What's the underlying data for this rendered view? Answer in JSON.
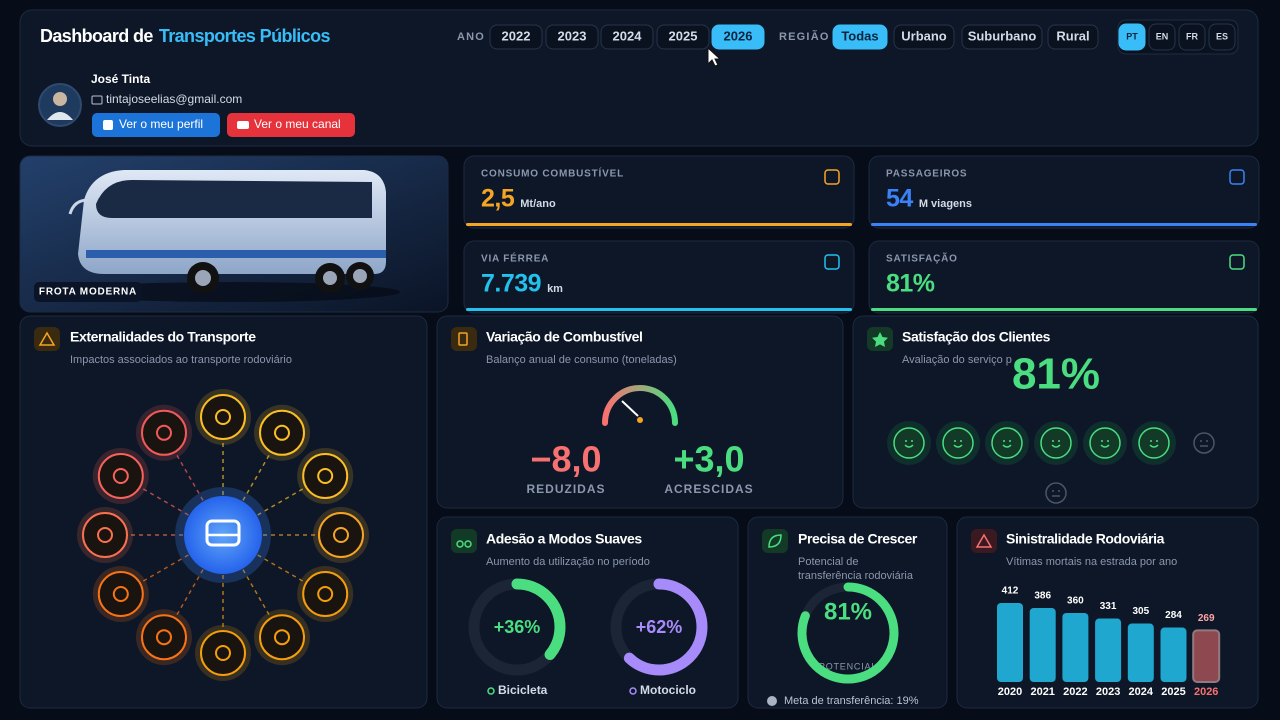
{
  "header": {
    "title_lead": "Dashboard de",
    "title_accent": "Transportes Públicos",
    "year_label": "ANO",
    "years": [
      {
        "label": "2022",
        "active": false
      },
      {
        "label": "2023",
        "active": false
      },
      {
        "label": "2024",
        "active": false
      },
      {
        "label": "2025",
        "active": false
      },
      {
        "label": "2026",
        "active": true
      }
    ],
    "region_label": "REGIÃO",
    "regions": [
      {
        "label": "Todas",
        "active": true
      },
      {
        "label": "Urbano",
        "active": false
      },
      {
        "label": "Suburbano",
        "active": false
      },
      {
        "label": "Rural",
        "active": false
      }
    ],
    "languages": [
      {
        "label": "PT",
        "active": true
      },
      {
        "label": "EN",
        "active": false
      },
      {
        "label": "FR",
        "active": false
      },
      {
        "label": "ES",
        "active": false
      }
    ]
  },
  "profile": {
    "name": "José Tinta",
    "email": "tintajoseelias@gmail.com",
    "profile_button": "Ver o meu perfil",
    "channel_button": "Ver o meu canal"
  },
  "hero": {
    "badge": "FROTA MODERNA"
  },
  "kpis": [
    {
      "label": "CONSUMO COMBUSTÍVEL",
      "value": "2,5",
      "unit": "Mt/ano",
      "color": "#f5a524"
    },
    {
      "label": "PASSAGEIROS",
      "value": "54",
      "unit": "M viagens",
      "color": "#3b82f6"
    },
    {
      "label": "VIA FÉRREA",
      "value": "7.739",
      "unit": "km",
      "color": "#22c1ee"
    },
    {
      "label": "SATISFAÇÃO",
      "value": "81%",
      "unit": "",
      "color": "#4ade80"
    }
  ],
  "externalities": {
    "title": "Externalidades do Transporte",
    "subtitle": "Impactos associados ao transporte rodoviário"
  },
  "fuel": {
    "title": "Variação de Combustível",
    "subtitle": "Balanço anual de consumo (toneladas)",
    "reduced_value": "−8,0",
    "reduced_label": "REDUZIDAS",
    "increased_value": "+3,0",
    "increased_label": "ACRESCIDAS"
  },
  "satisfaction": {
    "title": "Satisfação dos Clientes",
    "subtitle": "Avaliação do serviço p",
    "value": "81%",
    "faces": [
      "happy",
      "happy",
      "happy",
      "happy",
      "happy",
      "happy",
      "neutral",
      "neutral"
    ]
  },
  "modes": {
    "title": "Adesão a Modos Suaves",
    "subtitle": "Aumento da utilização no período",
    "rings": [
      {
        "label": "Bicicleta",
        "value": 36,
        "value_label": "+36%",
        "color": "#4ade80"
      },
      {
        "label": "Motociclo",
        "value": 62,
        "value_label": "+62%",
        "color": "#a78bfa"
      }
    ]
  },
  "growth": {
    "title": "Precisa de Crescer",
    "subtitle_lines": [
      "Potencial de",
      "transferência rodoviária"
    ],
    "value": 81,
    "value_label": "81%",
    "ring_caption": "POTENCIAL",
    "note": "Meta de transferência: 19%"
  },
  "accidents": {
    "title": "Sinistralidade Rodoviária",
    "subtitle": "Vítimas mortais na estrada por ano",
    "categories": [
      "2020",
      "2021",
      "2022",
      "2023",
      "2024",
      "2025",
      "2026"
    ],
    "values": [
      412,
      386,
      360,
      331,
      305,
      284,
      269
    ],
    "color": "#22c1ee",
    "highlight_color": "#f87171"
  }
}
